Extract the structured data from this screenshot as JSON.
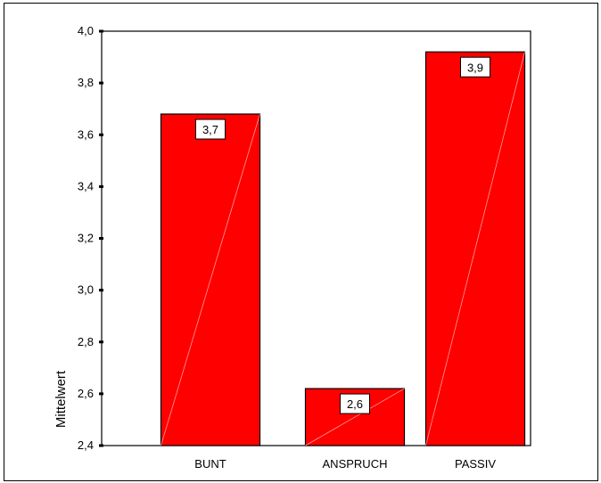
{
  "chart_data": {
    "type": "bar",
    "title": "",
    "xlabel": "",
    "ylabel": "Mittelwert",
    "categories": [
      "BUNT",
      "ANSPRUCH",
      "PASSIV"
    ],
    "values": [
      3.68,
      2.62,
      3.92
    ],
    "data_labels": [
      "3,7",
      "2,6",
      "3,9"
    ],
    "ylim": [
      2.4,
      4.0
    ],
    "yticks": [
      2.4,
      2.6,
      2.8,
      3.0,
      3.2,
      3.4,
      3.6,
      3.8,
      4.0
    ],
    "ytick_labels": [
      "2,4",
      "2,6",
      "2,8",
      "3,0",
      "3,2",
      "3,4",
      "3,6",
      "3,8",
      "4,0"
    ],
    "grid": false,
    "legend": "none",
    "bar_color": "#ff0000",
    "bar_edge_color": "#000000"
  }
}
